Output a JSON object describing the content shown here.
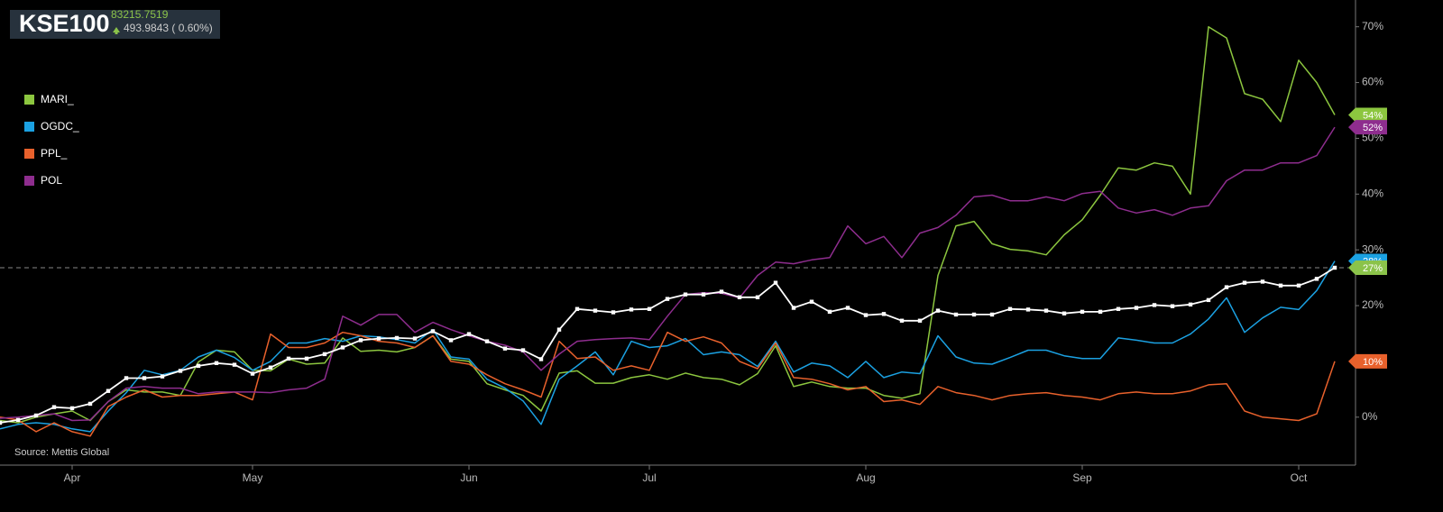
{
  "chart_data": {
    "type": "line",
    "index": {
      "name": "KSE100",
      "last": 83215.7519,
      "change": "493.9843 ( 0.60%)",
      "color": "#ffffff",
      "label_color": "#8bc34a",
      "values": [
        -1,
        -0.5,
        0.3,
        1.8,
        1.6,
        2.4,
        4.7,
        7,
        7,
        7.3,
        8.3,
        9.2,
        9.7,
        9.4,
        7.8,
        8.9,
        10.5,
        10.5,
        11.3,
        12.5,
        13.8,
        14.1,
        14.2,
        14.1,
        15.4,
        13.8,
        14.9,
        13.6,
        12.3,
        12,
        10.4,
        15.7,
        19.4,
        19.1,
        18.8,
        19.3,
        19.4,
        21.2,
        22,
        22,
        22.5,
        21.5,
        21.5,
        24.1,
        19.6,
        20.7,
        18.9,
        19.6,
        18.3,
        18.5,
        17.3,
        17.3,
        19.1,
        18.4,
        18.4,
        18.4,
        19.4,
        19.3,
        19.1,
        18.6,
        18.9,
        18.9,
        19.4,
        19.6,
        20.1,
        19.9,
        20.2,
        21,
        23.3,
        24.1,
        24.3,
        23.6,
        23.6,
        24.8,
        26.8
      ],
      "last_value_label": "27%"
    },
    "categories": [
      null,
      null,
      null,
      null,
      "Apr",
      null,
      null,
      null,
      null,
      null,
      null,
      null,
      null,
      null,
      "May",
      null,
      null,
      null,
      null,
      null,
      null,
      null,
      null,
      null,
      null,
      null,
      "Jun",
      null,
      null,
      null,
      null,
      null,
      null,
      null,
      null,
      null,
      "Jul",
      null,
      null,
      null,
      null,
      null,
      null,
      null,
      null,
      null,
      null,
      null,
      "Aug",
      null,
      null,
      null,
      null,
      null,
      null,
      null,
      null,
      null,
      null,
      null,
      "Sep",
      null,
      null,
      null,
      null,
      null,
      null,
      null,
      null,
      null,
      null,
      null,
      "Oct",
      null,
      null
    ],
    "series": [
      {
        "name": "MARI_",
        "color": "#8cc63f",
        "last_value_label": "54%",
        "values": [
          -0.6,
          -1,
          0,
          0.6,
          1.1,
          -0.6,
          2.8,
          4.9,
          4.5,
          4.5,
          3.9,
          9.9,
          12,
          11.7,
          8.4,
          8.3,
          10.4,
          9.5,
          9.7,
          14.2,
          11.8,
          12,
          11.7,
          12.5,
          14.6,
          10.4,
          10,
          6,
          4.9,
          3.9,
          1.1,
          7.9,
          8.3,
          6.1,
          6.1,
          7.1,
          7.6,
          6.8,
          7.9,
          7.1,
          6.8,
          5.8,
          7.8,
          12.8,
          5.5,
          6.3,
          5.5,
          5.2,
          5.2,
          3.9,
          3.4,
          4.2,
          25.4,
          34.3,
          35.1,
          31.1,
          30.1,
          29.8,
          29.1,
          32.7,
          35.4,
          39.8,
          44.7,
          44.3,
          45.6,
          45,
          40,
          70,
          68,
          58,
          57,
          53,
          64,
          60,
          54.2
        ]
      },
      {
        "name": "OGDC_",
        "color": "#1ba1e2",
        "last_value_label": "28%",
        "values": [
          -2.1,
          -1.3,
          -1,
          -1.3,
          -2.1,
          -2.6,
          1.1,
          4.4,
          8.4,
          7.6,
          8.4,
          10.8,
          12,
          10.7,
          8.4,
          10,
          13.3,
          13.3,
          14.1,
          13.6,
          14.6,
          14.4,
          13.9,
          13.3,
          15.7,
          10.8,
          10.4,
          6.8,
          5.2,
          2.9,
          -1.3,
          6.8,
          9.2,
          11.7,
          7.6,
          13.6,
          12.5,
          12.8,
          14.1,
          11.2,
          11.7,
          11.2,
          9.1,
          13.6,
          8.1,
          9.7,
          9.2,
          7.1,
          10,
          7.1,
          8.1,
          7.8,
          14.6,
          10.8,
          9.7,
          9.5,
          10.7,
          12,
          12,
          11,
          10.5,
          10.5,
          14.2,
          13.8,
          13.3,
          13.3,
          14.9,
          17.6,
          21.4,
          15.2,
          17.8,
          19.7,
          19.3,
          22.7,
          28
        ]
      },
      {
        "name": "PPL_",
        "color": "#e8612c",
        "last_value_label": "10%",
        "values": [
          0,
          -0.5,
          -2.6,
          -1,
          -2.6,
          -3.4,
          1.9,
          3.6,
          4.9,
          3.6,
          3.9,
          3.9,
          4.2,
          4.5,
          3.1,
          14.9,
          12.5,
          12.5,
          13.3,
          15.2,
          14.6,
          13.6,
          13.3,
          12.5,
          14.6,
          10,
          9.5,
          7.6,
          6,
          4.9,
          3.6,
          13.6,
          10.5,
          10.8,
          8.4,
          9.2,
          8.4,
          15.2,
          13.6,
          14.4,
          13.3,
          10,
          8.7,
          13.3,
          7.1,
          6.8,
          6,
          4.9,
          5.5,
          2.8,
          3.1,
          2.3,
          5.5,
          4.4,
          3.9,
          3.1,
          3.9,
          4.2,
          4.4,
          3.9,
          3.6,
          3.1,
          4.2,
          4.5,
          4.2,
          4.2,
          4.7,
          5.8,
          6,
          1.1,
          0,
          -0.3,
          -0.6,
          0.6,
          10
        ]
      },
      {
        "name": "POL",
        "color": "#8e2d8e",
        "last_value_label": "52%",
        "values": [
          -0.2,
          0,
          0.3,
          0.6,
          -0.6,
          -0.5,
          2.8,
          5.2,
          5.5,
          5.2,
          5.2,
          4.2,
          4.5,
          4.5,
          4.5,
          4.4,
          4.9,
          5.2,
          6.8,
          18.1,
          16.5,
          18.4,
          18.4,
          15.2,
          17,
          15.7,
          14.6,
          13.6,
          12.9,
          11.7,
          8.4,
          11.3,
          13.6,
          13.9,
          14.1,
          14.2,
          13.9,
          18.1,
          22,
          22.3,
          22.2,
          21.4,
          25.4,
          27.8,
          27.5,
          28.2,
          28.6,
          34.3,
          31.1,
          32.4,
          28.6,
          33,
          34,
          36.2,
          39.5,
          39.8,
          38.8,
          38.8,
          39.5,
          38.8,
          40.1,
          40.5,
          37.5,
          36.6,
          37.2,
          36.2,
          37.5,
          37.9,
          42.4,
          44.3,
          44.3,
          45.6,
          45.6,
          46.9,
          52
        ]
      }
    ],
    "ylim": [
      -8.6,
      74.8
    ],
    "yticks": [
      {
        "value": 0,
        "label": "0%"
      },
      {
        "value": 10,
        "label": "10%"
      },
      {
        "value": 20,
        "label": "20%"
      },
      {
        "value": 30,
        "label": "30%"
      },
      {
        "value": 40,
        "label": "40%"
      },
      {
        "value": 50,
        "label": "50%"
      },
      {
        "value": 60,
        "label": "60%"
      },
      {
        "value": 70,
        "label": "70%"
      }
    ],
    "source": "Source: Mettis Global"
  }
}
